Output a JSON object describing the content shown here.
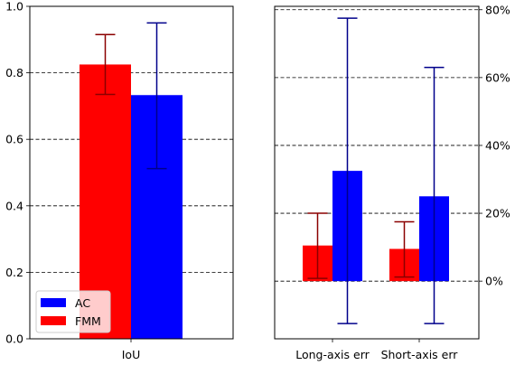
{
  "chart_data": [
    {
      "type": "bar",
      "panel": "left",
      "categories": [
        "IoU"
      ],
      "series": [
        {
          "name": "FMM",
          "color": "#ff0000",
          "error_color": "#8b0000",
          "values": [
            0.825
          ],
          "err_low": [
            0.735
          ],
          "err_high": [
            0.915
          ]
        },
        {
          "name": "AC",
          "color": "#0000ff",
          "error_color": "#00008b",
          "values": [
            0.733
          ],
          "err_low": [
            0.512
          ],
          "err_high": [
            0.95
          ]
        }
      ],
      "ylim": [
        0,
        1.0
      ],
      "yticks": [
        0.0,
        0.2,
        0.4,
        0.6,
        0.8,
        1.0
      ],
      "ytick_labels": [
        "0.0",
        "0.2",
        "0.4",
        "0.6",
        "0.8",
        "1.0"
      ],
      "grid": {
        "axis": "y",
        "style": "dashed"
      },
      "legend": {
        "placement": "lower-left",
        "entries": [
          "AC",
          "FMM"
        ]
      }
    },
    {
      "type": "bar",
      "panel": "right",
      "categories": [
        "Long-axis err",
        "Short-axis err"
      ],
      "series": [
        {
          "name": "FMM",
          "color": "#ff0000",
          "error_color": "#8b0000",
          "values": [
            10.5,
            9.5
          ],
          "err_low": [
            0.8,
            1.2
          ],
          "err_high": [
            20.0,
            17.5
          ]
        },
        {
          "name": "AC",
          "color": "#0000ff",
          "error_color": "#00008b",
          "values": [
            32.5,
            25.0
          ],
          "err_low": [
            -12.5,
            -12.5
          ],
          "err_high": [
            77.5,
            63.0
          ]
        }
      ],
      "ylim": [
        -17,
        81
      ],
      "yticks": [
        0,
        20,
        40,
        60,
        80
      ],
      "ytick_labels": [
        "0%",
        "20%",
        "40%",
        "60%",
        "80%"
      ],
      "yaxis_side": "right",
      "grid": {
        "axis": "y",
        "style": "dashed"
      }
    }
  ]
}
